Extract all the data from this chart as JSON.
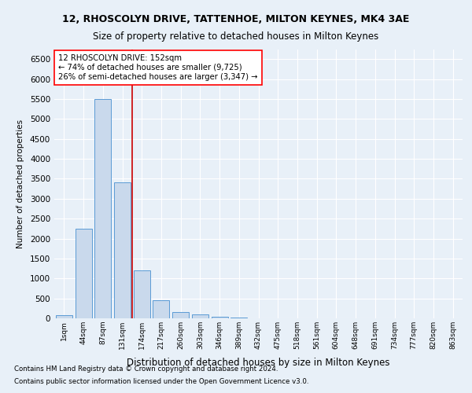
{
  "title1": "12, RHOSCOLYN DRIVE, TATTENHOE, MILTON KEYNES, MK4 3AE",
  "title2": "Size of property relative to detached houses in Milton Keynes",
  "xlabel": "Distribution of detached houses by size in Milton Keynes",
  "ylabel": "Number of detached properties",
  "footnote1": "Contains HM Land Registry data © Crown copyright and database right 2024.",
  "footnote2": "Contains public sector information licensed under the Open Government Licence v3.0.",
  "annotation_line1": "12 RHOSCOLYN DRIVE: 152sqm",
  "annotation_line2": "← 74% of detached houses are smaller (9,725)",
  "annotation_line3": "26% of semi-detached houses are larger (3,347) →",
  "bar_color": "#c9d9ec",
  "bar_edge_color": "#5b9bd5",
  "vline_color": "#cc0000",
  "vline_x": 3.5,
  "xlim": [
    -0.5,
    20.5
  ],
  "ylim": [
    0,
    6750
  ],
  "yticks": [
    0,
    500,
    1000,
    1500,
    2000,
    2500,
    3000,
    3500,
    4000,
    4500,
    5000,
    5500,
    6000,
    6500
  ],
  "categories": [
    "1sqm",
    "44sqm",
    "87sqm",
    "131sqm",
    "174sqm",
    "217sqm",
    "260sqm",
    "303sqm",
    "346sqm",
    "389sqm",
    "432sqm",
    "475sqm",
    "518sqm",
    "561sqm",
    "604sqm",
    "648sqm",
    "691sqm",
    "734sqm",
    "777sqm",
    "820sqm",
    "863sqm"
  ],
  "values": [
    80,
    2250,
    5500,
    3400,
    1200,
    450,
    150,
    90,
    45,
    10,
    5,
    3,
    2,
    1,
    1,
    0,
    0,
    0,
    0,
    0,
    0
  ],
  "bg_color": "#e8f0f8",
  "grid_color": "#ffffff"
}
